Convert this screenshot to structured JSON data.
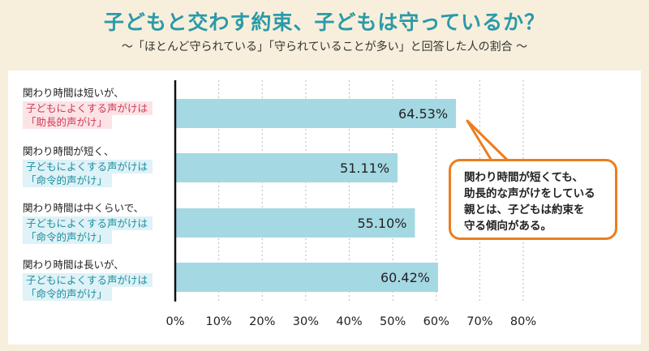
{
  "title": "子どもと交わす約束、子どもは守っているか？",
  "subtitle": "～「ほとんど守られている」「守られていることが多い」と回答した人の割合 ～",
  "rows": [
    {
      "line1": "関わり時間は短いが、",
      "line2": "子どもによくする声がけは",
      "line3": "「助長的声がけ」",
      "value_label": "64.53%",
      "highlight": "pink"
    },
    {
      "line1": "関わり時間が短く、",
      "line2": "子どもによくする声がけは",
      "line3": "「命令的声がけ」",
      "value_label": "51.11%",
      "highlight": "blue"
    },
    {
      "line1": "関わり時間は中くらいで、",
      "line2": "子どもによくする声がけは",
      "line3": "「命令的声がけ」",
      "value_label": "55.10%",
      "highlight": "blue"
    },
    {
      "line1": "関わり時間は長いが、",
      "line2": "子どもによくする声がけは",
      "line3": "「命令的声がけ」",
      "value_label": "60.42%",
      "highlight": "blue"
    }
  ],
  "callout": {
    "lines": [
      "関わり時間が短くても、",
      "助長的な声がけをしている",
      "親とは、子どもは約束を",
      "守る傾向がある。"
    ]
  },
  "chart_data": {
    "type": "bar",
    "orientation": "horizontal",
    "title": "子どもと交わす約束、子どもは守っているか？",
    "subtitle": "～「ほとんど守られている」「守られていることが多い」と回答した人の割合 ～",
    "categories": [
      "関わり時間は短いが、子どもによくする声がけは「助長的声がけ」",
      "関わり時間が短く、子どもによくする声がけは「命令的声がけ」",
      "関わり時間は中くらいで、子どもによくする声がけは「命令的声がけ」",
      "関わり時間は長いが、子どもによくする声がけは「命令的声がけ」"
    ],
    "values": [
      64.53,
      51.11,
      55.1,
      60.42
    ],
    "xlim": [
      0,
      80
    ],
    "xticks": [
      0,
      10,
      20,
      30,
      40,
      50,
      60,
      70,
      80
    ],
    "xtick_labels": [
      "0%",
      "10%",
      "20%",
      "30%",
      "40%",
      "50%",
      "60%",
      "70%",
      "80%"
    ],
    "grid": true,
    "bar_color": "#a4d8e3"
  },
  "colors": {
    "title": "#2a9aa8",
    "background": "#f7efdc",
    "bar": "#a4d8e3",
    "grid": "#bbbbbb",
    "callout_border": "#ec7d1f",
    "pink_text": "#d23a55",
    "blue_text": "#1e8ea0"
  }
}
